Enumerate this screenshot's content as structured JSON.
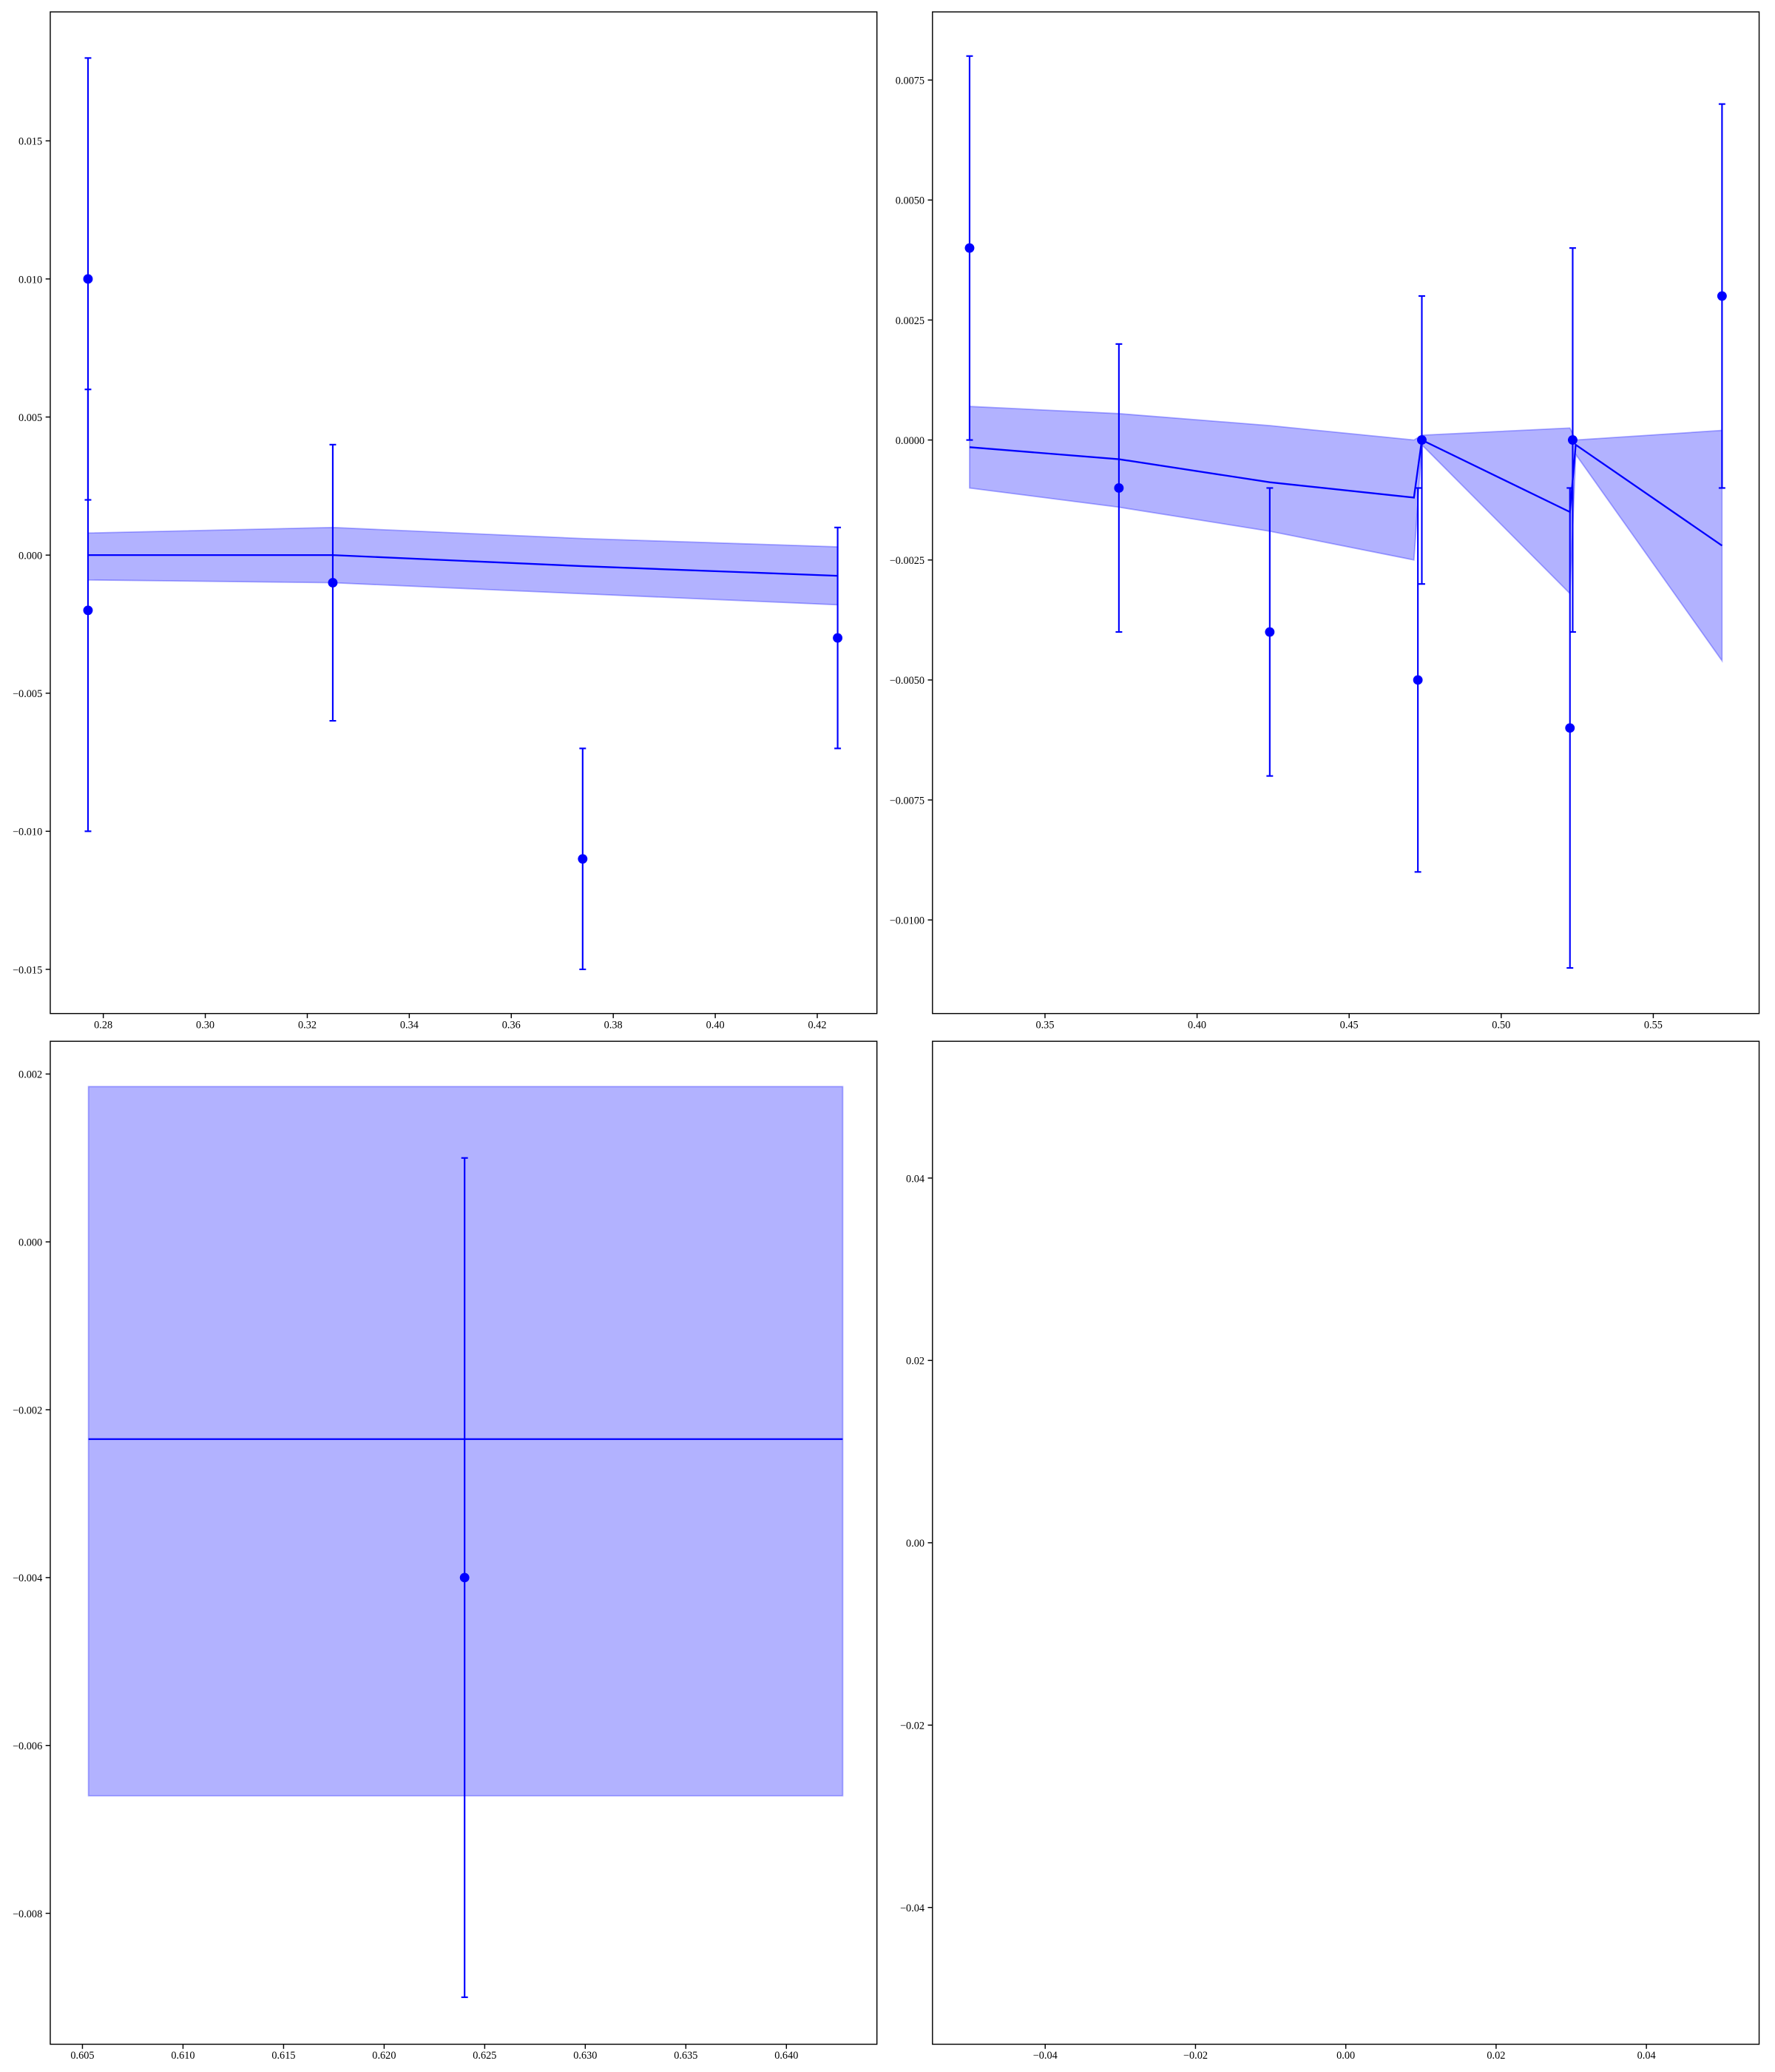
{
  "chart_data": [
    {
      "type": "errorbar",
      "color": "#0000ff",
      "band_opacity": 0.3,
      "xlim": [
        0.2696,
        0.4317
      ],
      "ylim": [
        -0.0166,
        0.01967
      ],
      "xticks": [
        0.28,
        {
          "value": 0.3,
          "label": "0.30"
        },
        0.32,
        0.34,
        0.36,
        0.38,
        {
          "value": 0.4,
          "label": "0.40"
        },
        0.42
      ],
      "yticks": [
        {
          "value": 0.015,
          "label": "0.015"
        },
        {
          "value": 0.01,
          "label": "0.010"
        },
        {
          "value": 0.005,
          "label": "0.005"
        },
        {
          "value": 0,
          "label": "0.000"
        },
        {
          "value": -0.005,
          "label": "−0.005"
        },
        {
          "value": -0.01,
          "label": "−0.010"
        },
        {
          "value": -0.015,
          "label": "−0.015"
        }
      ],
      "series": [
        {
          "x": [
            0.277,
            0.277,
            0.325,
            0.374,
            0.424
          ],
          "values": [
            0.01,
            -0.002,
            -0.001,
            -0.011,
            -0.003
          ],
          "errors": [
            0.008,
            0.008,
            0.005,
            0.004,
            0.004
          ]
        }
      ],
      "band": {
        "x": [
          0.277,
          0.325,
          0.374,
          0.424
        ],
        "values": [
          0,
          0,
          -0.0004,
          -0.00075
        ],
        "upper": [
          0.0008,
          0.001,
          0.0006,
          0.0003
        ],
        "lower": [
          -0.0009,
          -0.001,
          -0.0014,
          -0.0018
        ]
      }
    },
    {
      "type": "errorbar",
      "color": "#0000ff",
      "band_opacity": 0.3,
      "xlim": [
        0.313,
        0.5848
      ],
      "ylim": [
        -0.01195,
        0.00892
      ],
      "xticks": [
        0.35,
        {
          "value": 0.4,
          "label": "0.40"
        },
        0.45,
        {
          "value": 0.5,
          "label": "0.50"
        },
        0.55
      ],
      "yticks": [
        {
          "value": 0.0075,
          "label": "0.0075"
        },
        {
          "value": 0.005,
          "label": "0.0050"
        },
        {
          "value": 0.0025,
          "label": "0.0025"
        },
        {
          "value": 0,
          "label": "0.0000"
        },
        {
          "value": -0.0025,
          "label": "−0.0025"
        },
        {
          "value": -0.005,
          "label": "−0.0050"
        },
        {
          "value": -0.0075,
          "label": "−0.0075"
        },
        {
          "value": -0.01,
          "label": "−0.0100"
        }
      ],
      "series": [
        {
          "x": [
            0.3252,
            0.3743,
            0.4239,
            0.4726,
            0.4739,
            0.5226,
            0.5235,
            0.5726
          ],
          "values": [
            0.004,
            -0.001,
            -0.004,
            -0.005,
            0,
            -0.006,
            0,
            0.003
          ],
          "errors": [
            0.004,
            0.003,
            0.003,
            0.004,
            0.003,
            0.005,
            0.004,
            0.004
          ]
        }
      ],
      "band": {
        "x": [
          0.3252,
          0.3743,
          0.4239,
          0.4713,
          0.4739,
          0.5226,
          0.5245,
          0.5726
        ],
        "values": [
          -0.00015,
          -0.0004,
          -0.00088,
          -0.0012,
          0,
          -0.0015,
          -0.0001,
          -0.0022
        ],
        "upper": [
          0.0007,
          0.00055,
          0.0003,
          0,
          0.0001,
          0.00025,
          0,
          0.0002
        ],
        "lower": [
          -0.001,
          -0.0014,
          -0.0019,
          -0.0025,
          -0.0001,
          -0.0032,
          -0.0003,
          -0.0046
        ]
      }
    },
    {
      "type": "errorbar",
      "color": "#0000ff",
      "band_opacity": 0.3,
      "xlim": [
        0.6034,
        0.6445
      ],
      "ylim": [
        -0.00956,
        0.00239
      ],
      "xticks": [
        0.605,
        {
          "value": 0.61,
          "label": "0.610"
        },
        0.615,
        {
          "value": 0.62,
          "label": "0.620"
        },
        0.625,
        {
          "value": 0.63,
          "label": "0.630"
        },
        0.635,
        {
          "value": 0.64,
          "label": "0.640"
        }
      ],
      "yticks": [
        {
          "value": 0.002,
          "label": "0.002"
        },
        {
          "value": 0,
          "label": "0.000"
        },
        {
          "value": -0.002,
          "label": "−0.002"
        },
        {
          "value": -0.004,
          "label": "−0.004"
        },
        {
          "value": -0.006,
          "label": "−0.006"
        },
        {
          "value": -0.008,
          "label": "−0.008"
        }
      ],
      "series": [
        {
          "x": [
            0.624
          ],
          "values": [
            -0.004
          ],
          "errors": [
            0.005
          ]
        }
      ],
      "band": {
        "x": [
          0.6053,
          0.624,
          0.6428
        ],
        "values": [
          -0.00235,
          -0.00235,
          -0.00235
        ],
        "upper": [
          0.00185,
          0.00185,
          0.00185
        ],
        "lower": [
          -0.0066,
          -0.0066,
          -0.0066
        ]
      }
    },
    {
      "type": "errorbar",
      "color": "#0000ff",
      "xlim": [
        -0.055,
        0.055
      ],
      "ylim": [
        -0.055,
        0.055
      ],
      "xticks": [
        {
          "value": -0.04,
          "label": "−0.04"
        },
        {
          "value": -0.02,
          "label": "−0.02"
        },
        {
          "value": 0,
          "label": "0.00"
        },
        {
          "value": 0.02,
          "label": "0.02"
        },
        {
          "value": 0.04,
          "label": "0.04"
        }
      ],
      "yticks": [
        {
          "value": 0.04,
          "label": "0.04"
        },
        {
          "value": 0.02,
          "label": "0.02"
        },
        {
          "value": 0,
          "label": "0.00"
        },
        {
          "value": -0.02,
          "label": "−0.02"
        },
        {
          "value": -0.04,
          "label": "−0.04"
        }
      ],
      "series": []
    }
  ]
}
